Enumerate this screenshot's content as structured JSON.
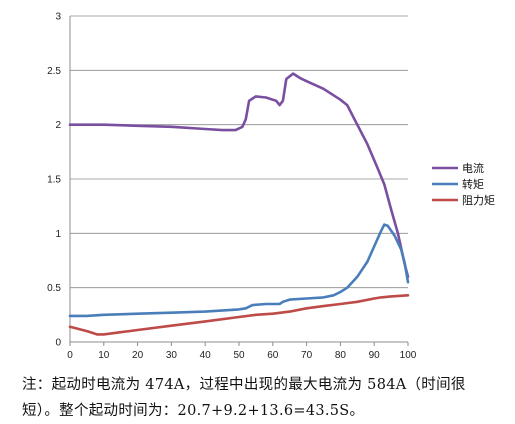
{
  "chart_data": {
    "type": "line",
    "title": "",
    "xlabel": "",
    "ylabel": "",
    "xlim": [
      0,
      100
    ],
    "ylim": [
      0,
      3
    ],
    "x_ticks": [
      0,
      10,
      20,
      30,
      40,
      50,
      60,
      70,
      80,
      90,
      100
    ],
    "y_ticks": [
      0,
      0.5,
      1,
      1.5,
      2,
      2.5,
      3
    ],
    "y_tick_labels": [
      "0",
      "0.5",
      "1",
      "1.5",
      "2",
      "2.5",
      "3"
    ],
    "grid": "horizontal",
    "legend_position": "right",
    "series": [
      {
        "name": "电流",
        "color": "#7b4fa0",
        "points": [
          [
            0,
            2.0
          ],
          [
            10,
            2.0
          ],
          [
            20,
            1.99
          ],
          [
            30,
            1.98
          ],
          [
            40,
            1.96
          ],
          [
            45,
            1.95
          ],
          [
            49,
            1.95
          ],
          [
            51,
            1.98
          ],
          [
            52,
            2.05
          ],
          [
            53,
            2.22
          ],
          [
            55,
            2.26
          ],
          [
            58,
            2.25
          ],
          [
            61,
            2.22
          ],
          [
            62,
            2.18
          ],
          [
            63,
            2.22
          ],
          [
            64,
            2.42
          ],
          [
            66,
            2.47
          ],
          [
            68,
            2.43
          ],
          [
            70,
            2.4
          ],
          [
            75,
            2.33
          ],
          [
            80,
            2.23
          ],
          [
            82,
            2.18
          ],
          [
            85,
            2.0
          ],
          [
            88,
            1.82
          ],
          [
            91,
            1.6
          ],
          [
            93,
            1.45
          ],
          [
            95,
            1.22
          ],
          [
            97,
            1.0
          ],
          [
            99,
            0.72
          ],
          [
            100,
            0.6
          ]
        ]
      },
      {
        "name": "转矩",
        "color": "#4a7ebb",
        "points": [
          [
            0,
            0.24
          ],
          [
            5,
            0.24
          ],
          [
            10,
            0.25
          ],
          [
            20,
            0.26
          ],
          [
            30,
            0.27
          ],
          [
            40,
            0.28
          ],
          [
            50,
            0.3
          ],
          [
            52,
            0.31
          ],
          [
            54,
            0.34
          ],
          [
            58,
            0.35
          ],
          [
            62,
            0.35
          ],
          [
            63,
            0.37
          ],
          [
            65,
            0.39
          ],
          [
            70,
            0.4
          ],
          [
            75,
            0.41
          ],
          [
            78,
            0.43
          ],
          [
            80,
            0.46
          ],
          [
            82,
            0.5
          ],
          [
            85,
            0.6
          ],
          [
            88,
            0.74
          ],
          [
            90,
            0.88
          ],
          [
            92,
            1.02
          ],
          [
            93,
            1.08
          ],
          [
            94,
            1.07
          ],
          [
            96,
            0.98
          ],
          [
            98,
            0.85
          ],
          [
            99,
            0.73
          ],
          [
            100,
            0.55
          ]
        ]
      },
      {
        "name": "阻力矩",
        "color": "#be4b48",
        "points": [
          [
            0,
            0.14
          ],
          [
            5,
            0.1
          ],
          [
            8,
            0.07
          ],
          [
            10,
            0.07
          ],
          [
            15,
            0.09
          ],
          [
            20,
            0.11
          ],
          [
            30,
            0.15
          ],
          [
            40,
            0.19
          ],
          [
            50,
            0.23
          ],
          [
            55,
            0.25
          ],
          [
            60,
            0.26
          ],
          [
            65,
            0.28
          ],
          [
            70,
            0.31
          ],
          [
            75,
            0.33
          ],
          [
            80,
            0.35
          ],
          [
            85,
            0.37
          ],
          [
            90,
            0.4
          ],
          [
            92,
            0.41
          ],
          [
            95,
            0.42
          ],
          [
            100,
            0.43
          ]
        ]
      }
    ]
  },
  "notes": {
    "line1": "注：起动时电流为 474A，过程中出现的最大电流为 584A（时间很",
    "line2": "短）。整个起动时间为：20.7+9.2+13.6=43.5S。"
  }
}
